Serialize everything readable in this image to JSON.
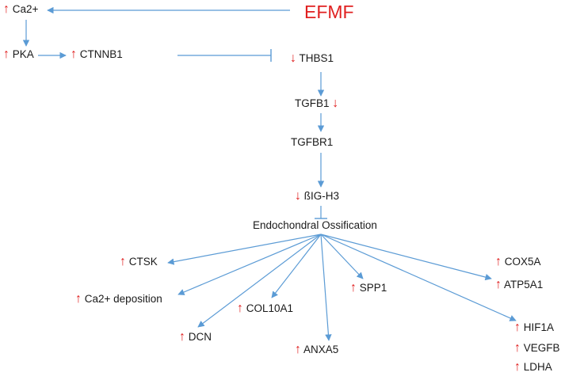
{
  "title": "EFMF",
  "colors": {
    "up": "#e02020",
    "down": "#e02020",
    "edge": "#5b9bd5",
    "text": "#1a1a1a"
  },
  "glyphs": {
    "up": "↑",
    "down": "↓"
  },
  "nodes": {
    "ca2": {
      "label": "Ca2+",
      "dir": "up"
    },
    "pka": {
      "label": "PKA",
      "dir": "up"
    },
    "ctnnb1": {
      "label": "CTNNB1",
      "dir": "up"
    },
    "thbs1": {
      "label": "THBS1",
      "dir": "down"
    },
    "tgfb1": {
      "label": "TGFB1",
      "dir": "down"
    },
    "tgfbr1": {
      "label": "TGFBR1",
      "dir": ""
    },
    "bigh3": {
      "label": "ßIG-H3",
      "dir": "down"
    },
    "endo": {
      "label": "Endochondral Ossification",
      "dir": ""
    },
    "ctsk": {
      "label": "CTSK",
      "dir": "up"
    },
    "cadep": {
      "label": "Ca2+ deposition",
      "dir": "up"
    },
    "dcn": {
      "label": "DCN",
      "dir": "up"
    },
    "col10a1": {
      "label": "COL10A1",
      "dir": "up"
    },
    "anxa5": {
      "label": "ANXA5",
      "dir": "up"
    },
    "spp1": {
      "label": "SPP1",
      "dir": "up"
    },
    "cox5a": {
      "label": "COX5A",
      "dir": "up"
    },
    "atp5a1": {
      "label": "ATP5A1",
      "dir": "up"
    },
    "hif1a": {
      "label": "HIF1A",
      "dir": "up"
    },
    "vegfb": {
      "label": "VEGFB",
      "dir": "up"
    },
    "ldha": {
      "label": "LDHA",
      "dir": "up"
    }
  }
}
